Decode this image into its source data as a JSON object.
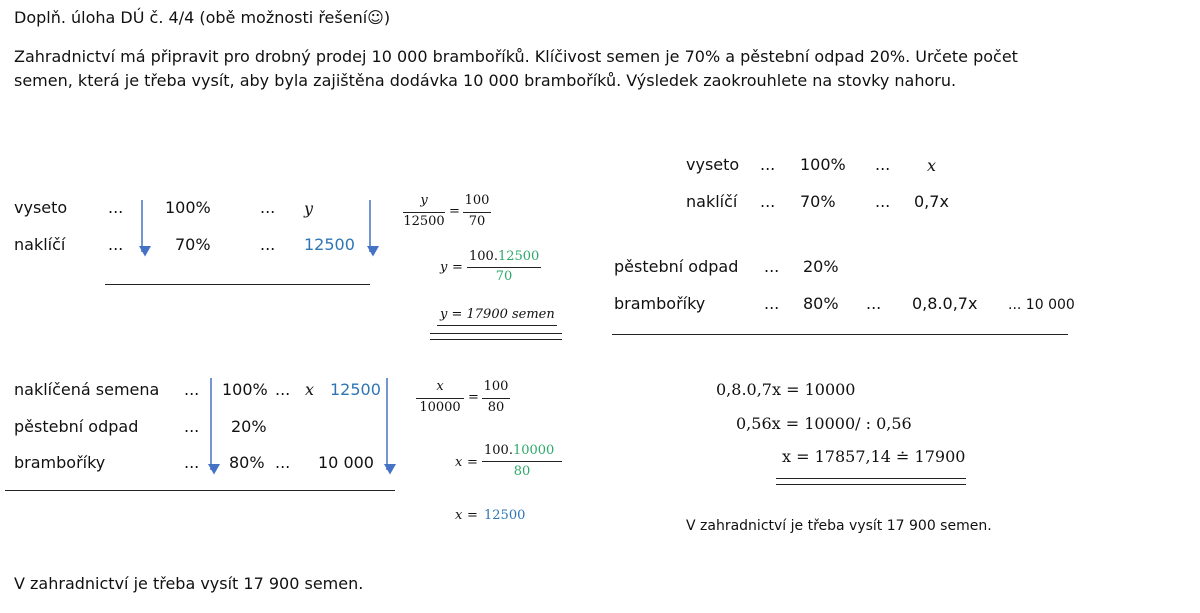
{
  "title": "Doplň. úloha DÚ č. 4/4 (obě možnosti řešení☺)",
  "assignment": [
    "Zahradnictví má připravit pro drobný prodej 10 000 bramboříků. Klíčivost semen je 70% a pěstební odpad 20%. Určete počet",
    "semen, která je třeba vysít, aby byla zajištěna dodávka 10 000 bramboříků. Výsledek zaokrouhlete na stovky nahoru."
  ],
  "method_1": {
    "table_1": {
      "rows": [
        [
          "vyseto",
          "...",
          "100%",
          "...",
          "y"
        ],
        [
          "naklíčí",
          "...",
          "70%",
          "...",
          "12500"
        ]
      ]
    },
    "proportion_1": {
      "left_num": "y",
      "left_den": "12500",
      "sign": "=",
      "right_num": "100",
      "right_den": "70"
    },
    "step_1": {
      "var": "y",
      "sign": "=",
      "num": "100.",
      "num_value": "12500",
      "den": "70"
    },
    "result_1": "y = 17900 semen",
    "table_2": {
      "rows": [
        [
          "naklíčená semena",
          "...",
          "100%",
          "...",
          "x",
          "12500"
        ],
        [
          "pěstební odpad",
          "...",
          "20%"
        ],
        [
          "bramboříky",
          "...",
          "80%",
          "...",
          "10 000"
        ]
      ]
    },
    "proportion_2": {
      "left_num": "x",
      "left_den": "10000",
      "sign": "=",
      "right_num": "100",
      "right_den": "80"
    },
    "step_2": {
      "var": "x",
      "sign": "=",
      "num": "100.",
      "num_value": "10000",
      "den": "80"
    },
    "result_2": {
      "var": "x",
      "sign": "=",
      "value": "12500"
    }
  },
  "method_2": {
    "table": {
      "rows": [
        [
          "vyseto",
          "...",
          "100%",
          "...",
          "x"
        ],
        [
          "naklíčí",
          "...",
          "70%",
          "...",
          "0,7x"
        ],
        [
          "pěstební odpad",
          "...",
          "20%"
        ],
        [
          "bramboříky",
          "...",
          "80%",
          "...",
          "0,8.0,7x",
          "... 10 000"
        ]
      ]
    },
    "equations": [
      "0,8.0,7x = 10000",
      "0,56x = 10000/ : 0,56",
      "x = 17857,14 ≐ 17900"
    ],
    "answer": "V zahradnictví je třeba vysít 17 900 semen."
  },
  "answer": "V zahradnictví je třeba vysít 17 900 semen."
}
